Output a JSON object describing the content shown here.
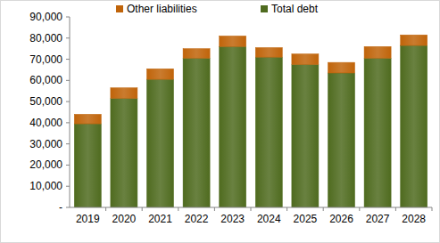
{
  "chart_data": {
    "type": "bar",
    "stacked": true,
    "grid": false,
    "legend": "top",
    "categories": [
      "2019",
      "2020",
      "2021",
      "2022",
      "2023",
      "2024",
      "2025",
      "2026",
      "2027",
      "2028"
    ],
    "series": [
      {
        "name": "Total debt",
        "color": "#4f6b1f",
        "values": [
          39500,
          51500,
          60500,
          70500,
          76000,
          71000,
          67500,
          63500,
          70500,
          76500
        ]
      },
      {
        "name": "Other liabilities",
        "color": "#c0640a",
        "values": [
          4500,
          5000,
          5000,
          4500,
          5000,
          4500,
          5000,
          5000,
          5500,
          5000
        ]
      }
    ],
    "ylim": [
      0,
      90000
    ],
    "yticks": [
      {
        "value": 0,
        "label": "-"
      },
      {
        "value": 10000,
        "label": "10,000"
      },
      {
        "value": 20000,
        "label": "20,000"
      },
      {
        "value": 30000,
        "label": "30,000"
      },
      {
        "value": 40000,
        "label": "40,000"
      },
      {
        "value": 50000,
        "label": "50,000"
      },
      {
        "value": 60000,
        "label": "60,000"
      },
      {
        "value": 70000,
        "label": "70,000"
      },
      {
        "value": 80000,
        "label": "80,000"
      },
      {
        "value": 90000,
        "label": "90,000"
      }
    ]
  }
}
